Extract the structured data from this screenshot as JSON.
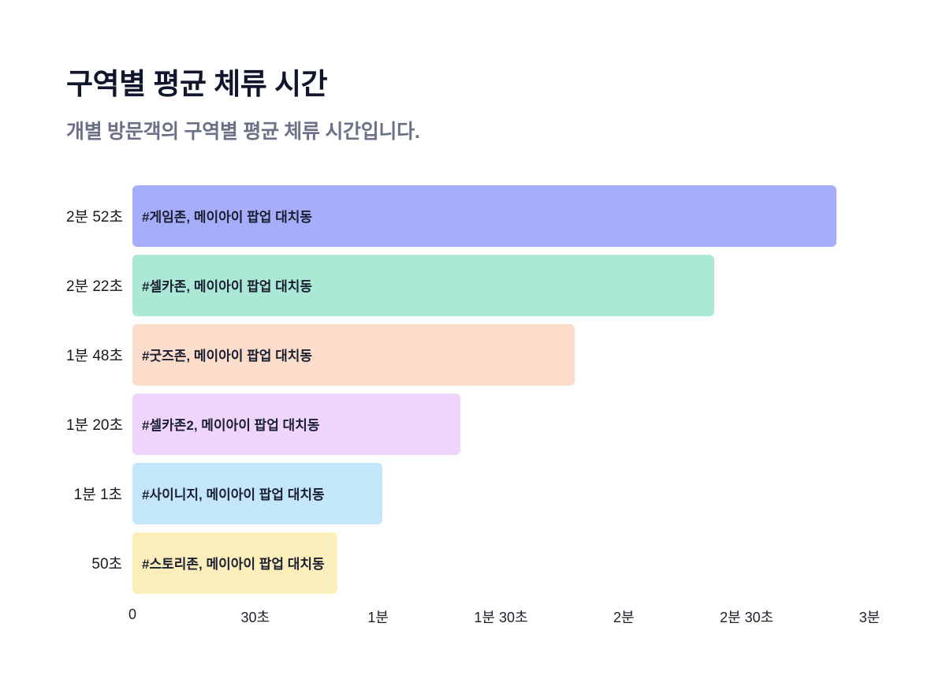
{
  "header": {
    "title": "구역별 평균 체류 시간",
    "subtitle": "개별 방문객의 구역별 평균 체류 시간입니다."
  },
  "chart_data": {
    "type": "bar",
    "orientation": "horizontal",
    "title": "구역별 평균 체류 시간",
    "subtitle": "개별 방문객의 구역별 평균 체류 시간입니다.",
    "xlabel": "",
    "ylabel": "",
    "x_axis": {
      "unit": "time",
      "max_seconds": 180,
      "ticks": [
        "0",
        "30초",
        "1분",
        "1분 30초",
        "2분",
        "2분 30초",
        "3분"
      ],
      "grid": false
    },
    "legend": "none",
    "bars": [
      {
        "duration_label": "2분 52초",
        "seconds": 172,
        "label": "#게임존, 메이아이 팝업 대치동",
        "color": "#a6aefa"
      },
      {
        "duration_label": "2분 22초",
        "seconds": 142,
        "label": "#셀카존, 메이아이 팝업 대치동",
        "color": "#abe9d6"
      },
      {
        "duration_label": "1분 48초",
        "seconds": 108,
        "label": "#굿즈존, 메이아이 팝업 대치동",
        "color": "#fcdcca"
      },
      {
        "duration_label": "1분 20초",
        "seconds": 80,
        "label": "#셀카존2, 메이아이 팝업 대치동",
        "color": "#efd5fb"
      },
      {
        "duration_label": "1분 1초",
        "seconds": 61,
        "label": "#사이니지, 메이아이 팝업 대치동",
        "color": "#c4e6fb"
      },
      {
        "duration_label": "50초",
        "seconds": 50,
        "label": "#스토리존, 메이아이 팝업 대치동",
        "color": "#fceebb"
      }
    ]
  }
}
